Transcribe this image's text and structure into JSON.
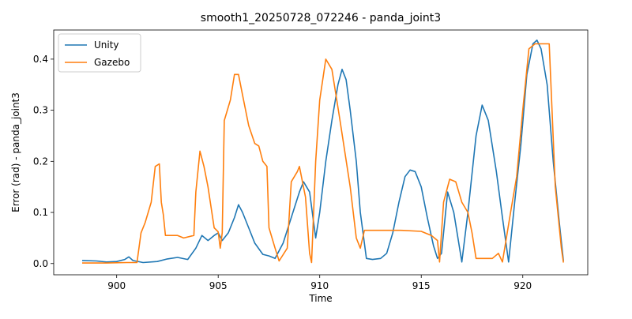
{
  "chart_data": {
    "type": "line",
    "title": "smooth1_20250728_072246 - panda_joint3",
    "xlabel": "Time",
    "ylabel": "Error (rad) - panda_joint3",
    "xlim": [
      896.9,
      923.2
    ],
    "ylim": [
      -0.022,
      0.457
    ],
    "xticks": [
      900,
      905,
      910,
      915,
      920
    ],
    "xtick_labels": [
      "900",
      "905",
      "910",
      "915",
      "920"
    ],
    "yticks": [
      0.0,
      0.1,
      0.2,
      0.3,
      0.4
    ],
    "ytick_labels": [
      "0.0",
      "0.1",
      "0.2",
      "0.3",
      "0.4"
    ],
    "grid": false,
    "legend_position": "top-left",
    "colors": {
      "Unity": "#1f77b4",
      "Gazebo": "#ff7f0e"
    },
    "series": [
      {
        "name": "Unity",
        "color": "#1f77b4",
        "points": [
          [
            898.3,
            0.006
          ],
          [
            899.0,
            0.005
          ],
          [
            899.5,
            0.003
          ],
          [
            900.0,
            0.004
          ],
          [
            900.4,
            0.008
          ],
          [
            900.6,
            0.013
          ],
          [
            900.8,
            0.006
          ],
          [
            901.3,
            0.002
          ],
          [
            902.0,
            0.004
          ],
          [
            902.5,
            0.009
          ],
          [
            903.0,
            0.012
          ],
          [
            903.5,
            0.008
          ],
          [
            903.9,
            0.03
          ],
          [
            904.2,
            0.055
          ],
          [
            904.5,
            0.045
          ],
          [
            904.8,
            0.055
          ],
          [
            905.0,
            0.06
          ],
          [
            905.2,
            0.045
          ],
          [
            905.5,
            0.06
          ],
          [
            905.8,
            0.09
          ],
          [
            906.0,
            0.115
          ],
          [
            906.2,
            0.1
          ],
          [
            906.5,
            0.07
          ],
          [
            906.8,
            0.04
          ],
          [
            907.2,
            0.018
          ],
          [
            907.5,
            0.015
          ],
          [
            907.8,
            0.01
          ],
          [
            908.2,
            0.04
          ],
          [
            908.6,
            0.09
          ],
          [
            909.0,
            0.14
          ],
          [
            909.2,
            0.16
          ],
          [
            909.5,
            0.14
          ],
          [
            909.8,
            0.05
          ],
          [
            910.0,
            0.1
          ],
          [
            910.3,
            0.2
          ],
          [
            910.6,
            0.28
          ],
          [
            910.9,
            0.35
          ],
          [
            911.1,
            0.38
          ],
          [
            911.3,
            0.36
          ],
          [
            911.5,
            0.3
          ],
          [
            911.8,
            0.2
          ],
          [
            912.0,
            0.1
          ],
          [
            912.3,
            0.01
          ],
          [
            912.6,
            0.008
          ],
          [
            913.0,
            0.01
          ],
          [
            913.3,
            0.02
          ],
          [
            913.6,
            0.06
          ],
          [
            913.9,
            0.12
          ],
          [
            914.2,
            0.17
          ],
          [
            914.45,
            0.183
          ],
          [
            914.7,
            0.18
          ],
          [
            915.0,
            0.15
          ],
          [
            915.3,
            0.09
          ],
          [
            915.6,
            0.035
          ],
          [
            915.8,
            0.01
          ],
          [
            916.0,
            0.02
          ],
          [
            916.3,
            0.14
          ],
          [
            916.6,
            0.1
          ],
          [
            917.0,
            0.003
          ],
          [
            917.3,
            0.1
          ],
          [
            917.7,
            0.25
          ],
          [
            918.0,
            0.31
          ],
          [
            918.3,
            0.28
          ],
          [
            918.7,
            0.18
          ],
          [
            919.0,
            0.09
          ],
          [
            919.3,
            0.003
          ],
          [
            919.6,
            0.12
          ],
          [
            919.9,
            0.23
          ],
          [
            920.2,
            0.37
          ],
          [
            920.5,
            0.43
          ],
          [
            920.7,
            0.437
          ],
          [
            920.9,
            0.42
          ],
          [
            921.2,
            0.35
          ],
          [
            921.5,
            0.2
          ],
          [
            921.8,
            0.08
          ],
          [
            922.0,
            0.005
          ]
        ]
      },
      {
        "name": "Gazebo",
        "color": "#ff7f0e",
        "points": [
          [
            898.3,
            0.001
          ],
          [
            899.5,
            0.001
          ],
          [
            900.5,
            0.002
          ],
          [
            901.0,
            0.002
          ],
          [
            901.2,
            0.06
          ],
          [
            901.4,
            0.08
          ],
          [
            901.7,
            0.12
          ],
          [
            901.9,
            0.19
          ],
          [
            902.1,
            0.195
          ],
          [
            902.2,
            0.12
          ],
          [
            902.3,
            0.095
          ],
          [
            902.4,
            0.055
          ],
          [
            903.0,
            0.055
          ],
          [
            903.3,
            0.05
          ],
          [
            903.8,
            0.055
          ],
          [
            903.9,
            0.14
          ],
          [
            904.1,
            0.22
          ],
          [
            904.3,
            0.19
          ],
          [
            904.5,
            0.15
          ],
          [
            904.8,
            0.07
          ],
          [
            905.0,
            0.062
          ],
          [
            905.1,
            0.03
          ],
          [
            905.2,
            0.06
          ],
          [
            905.3,
            0.28
          ],
          [
            905.6,
            0.32
          ],
          [
            905.8,
            0.37
          ],
          [
            906.0,
            0.37
          ],
          [
            906.2,
            0.33
          ],
          [
            906.5,
            0.27
          ],
          [
            906.8,
            0.235
          ],
          [
            907.0,
            0.23
          ],
          [
            907.2,
            0.2
          ],
          [
            907.4,
            0.19
          ],
          [
            907.5,
            0.07
          ],
          [
            907.8,
            0.03
          ],
          [
            908.0,
            0.005
          ],
          [
            908.4,
            0.03
          ],
          [
            908.6,
            0.16
          ],
          [
            908.9,
            0.18
          ],
          [
            909.0,
            0.19
          ],
          [
            909.3,
            0.13
          ],
          [
            909.5,
            0.02
          ],
          [
            909.6,
            0.002
          ],
          [
            909.8,
            0.2
          ],
          [
            910.0,
            0.32
          ],
          [
            910.3,
            0.4
          ],
          [
            910.6,
            0.38
          ],
          [
            911.0,
            0.28
          ],
          [
            911.5,
            0.15
          ],
          [
            911.8,
            0.05
          ],
          [
            912.0,
            0.03
          ],
          [
            912.2,
            0.065
          ],
          [
            913.0,
            0.065
          ],
          [
            914.0,
            0.065
          ],
          [
            915.0,
            0.063
          ],
          [
            915.5,
            0.055
          ],
          [
            915.8,
            0.045
          ],
          [
            915.9,
            0.003
          ],
          [
            916.1,
            0.12
          ],
          [
            916.4,
            0.165
          ],
          [
            916.7,
            0.16
          ],
          [
            917.0,
            0.12
          ],
          [
            917.3,
            0.1
          ],
          [
            917.5,
            0.06
          ],
          [
            917.7,
            0.01
          ],
          [
            918.5,
            0.01
          ],
          [
            918.8,
            0.02
          ],
          [
            919.0,
            0.003
          ],
          [
            919.4,
            0.1
          ],
          [
            919.7,
            0.17
          ],
          [
            920.0,
            0.3
          ],
          [
            920.3,
            0.42
          ],
          [
            920.6,
            0.43
          ],
          [
            921.0,
            0.43
          ],
          [
            921.3,
            0.43
          ],
          [
            921.6,
            0.15
          ],
          [
            921.9,
            0.03
          ],
          [
            922.0,
            0.002
          ]
        ]
      }
    ]
  }
}
